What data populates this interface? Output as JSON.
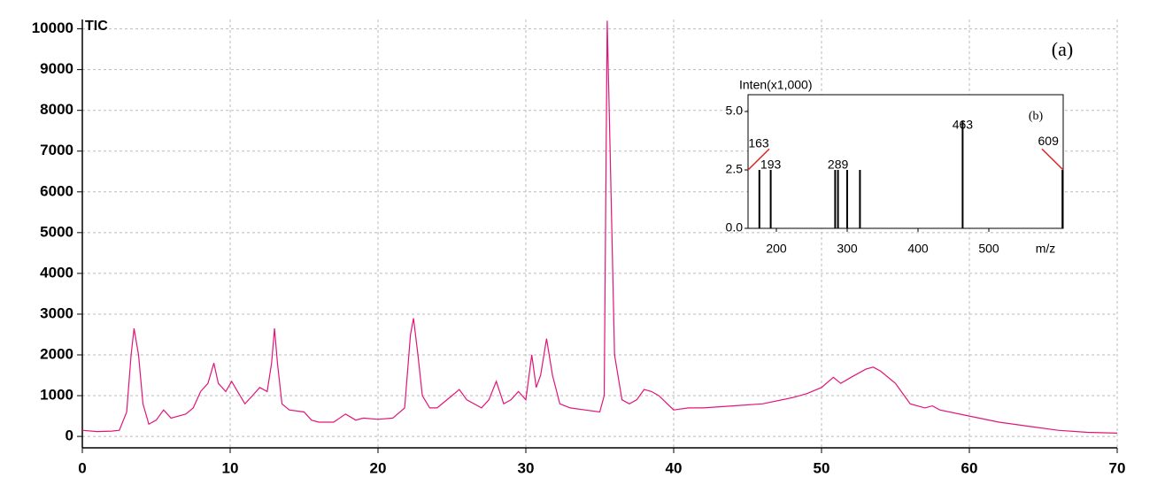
{
  "chart_data": [
    {
      "type": "line",
      "title": "TIC",
      "annotation": "(a)",
      "x": [
        0,
        1,
        2,
        2.5,
        3,
        3.3,
        3.5,
        3.8,
        4.1,
        4.5,
        5,
        5.5,
        6,
        7,
        7.5,
        8,
        8.5,
        8.9,
        9.2,
        9.7,
        10.1,
        10.5,
        11,
        11.5,
        12,
        12.5,
        12.8,
        13,
        13.2,
        13.5,
        14,
        15,
        15.5,
        16,
        17,
        17.8,
        18.5,
        19,
        20,
        21,
        21.8,
        22.2,
        22.4,
        22.7,
        23,
        23.5,
        24,
        25,
        25.5,
        26,
        27,
        27.5,
        28,
        28.5,
        29,
        29.5,
        30,
        30.4,
        30.7,
        31,
        31.4,
        31.8,
        32.3,
        33,
        34,
        35,
        35.3,
        35.5,
        35.7,
        36,
        36.5,
        37,
        37.5,
        38,
        38.5,
        39,
        40,
        41,
        42,
        44,
        46,
        48,
        49,
        50,
        50.8,
        51.3,
        52,
        53,
        53.5,
        54,
        55,
        56,
        57,
        57.5,
        58,
        60,
        62,
        64,
        66,
        68,
        70
      ],
      "values": [
        150,
        120,
        130,
        150,
        600,
        2000,
        2650,
        2000,
        800,
        300,
        400,
        650,
        450,
        550,
        700,
        1100,
        1300,
        1800,
        1300,
        1100,
        1350,
        1100,
        800,
        1000,
        1200,
        1100,
        1800,
        2650,
        1800,
        800,
        650,
        600,
        400,
        350,
        350,
        550,
        400,
        450,
        420,
        450,
        700,
        2500,
        2900,
        2000,
        1000,
        700,
        700,
        1000,
        1150,
        900,
        700,
        900,
        1350,
        800,
        900,
        1100,
        900,
        2000,
        1200,
        1500,
        2400,
        1500,
        800,
        700,
        650,
        600,
        1000,
        10200,
        7000,
        2000,
        900,
        800,
        900,
        1150,
        1100,
        1000,
        650,
        700,
        700,
        750,
        800,
        950,
        1050,
        1200,
        1450,
        1300,
        1450,
        1650,
        1700,
        1600,
        1300,
        800,
        700,
        750,
        650,
        500,
        350,
        250,
        150,
        100,
        80
      ],
      "color": "#e0157a",
      "xlim": [
        0,
        70
      ],
      "xticks": [
        0,
        10,
        20,
        30,
        40,
        50,
        60,
        70
      ],
      "ylim": [
        -280,
        10230
      ],
      "yticks": [
        0,
        1000,
        2000,
        3000,
        4000,
        5000,
        6000,
        7000,
        8000,
        9000,
        10000
      ],
      "grid": true
    },
    {
      "type": "bar",
      "y_label": "Inten(x1,000)",
      "x_label": "m/z",
      "annotation": "(b)",
      "x": [
        176,
        192,
        283,
        287,
        300,
        318,
        463,
        604
      ],
      "values": [
        2.5,
        2.5,
        2.5,
        2.5,
        2.5,
        2.5,
        4.6,
        2.5
      ],
      "color": "#000000",
      "peak_labels": [
        {
          "text": "163",
          "x": 175,
          "y": 3.6
        },
        {
          "text": "193",
          "x": 192,
          "y": 2.7
        },
        {
          "text": "289",
          "x": 287,
          "y": 2.7
        },
        {
          "text": "463",
          "x": 463,
          "y": 4.4
        },
        {
          "text": "609",
          "x": 584,
          "y": 3.7
        }
      ],
      "xlim": [
        160,
        605
      ],
      "xticks": [
        200,
        300,
        400,
        500
      ],
      "ylim": [
        0,
        5.72
      ],
      "yticks": [
        {
          "value": 0,
          "label": "0.0"
        },
        {
          "value": 2.5,
          "label": "2.5"
        },
        {
          "value": 5,
          "label": "5.0"
        }
      ]
    }
  ]
}
